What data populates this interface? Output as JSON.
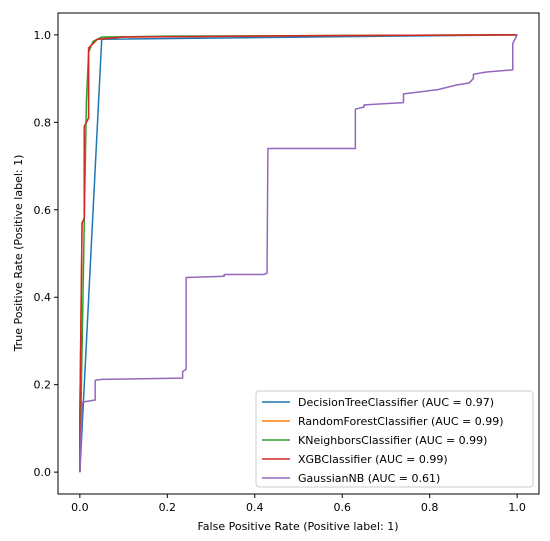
{
  "chart_data": {
    "type": "line",
    "title": "",
    "xlabel": "False Positive Rate (Positive label: 1)",
    "ylabel": "True Positive Rate (Positive label: 1)",
    "xlim": [
      -0.05,
      1.05
    ],
    "ylim": [
      -0.05,
      1.05
    ],
    "x_ticks": [
      "0.0",
      "0.2",
      "0.4",
      "0.6",
      "0.8",
      "1.0"
    ],
    "y_ticks": [
      "0.0",
      "0.2",
      "0.4",
      "0.6",
      "0.8",
      "1.0"
    ],
    "grid": false,
    "legend_position": "lower-right",
    "series": [
      {
        "name": "DecisionTreeClassifier (AUC = 0.97)",
        "color": "#1f77b4",
        "points": [
          [
            0.0,
            0.0
          ],
          [
            0.05,
            0.99
          ],
          [
            1.0,
            1.0
          ]
        ]
      },
      {
        "name": "RandomForestClassifier (AUC = 0.99)",
        "color": "#ff7f0e",
        "points": [
          [
            0.0,
            0.0
          ],
          [
            0.0,
            0.13
          ],
          [
            0.005,
            0.57
          ],
          [
            0.01,
            0.58
          ],
          [
            0.01,
            0.79
          ],
          [
            0.02,
            0.81
          ],
          [
            0.02,
            0.97
          ],
          [
            0.03,
            0.98
          ],
          [
            0.04,
            0.99
          ],
          [
            0.1,
            0.995
          ],
          [
            0.5,
            0.998
          ],
          [
            1.0,
            1.0
          ]
        ]
      },
      {
        "name": "KNeighborsClassifier (AUC = 0.99)",
        "color": "#2ca02c",
        "points": [
          [
            0.0,
            0.0
          ],
          [
            0.015,
            0.85
          ],
          [
            0.02,
            0.96
          ],
          [
            0.03,
            0.985
          ],
          [
            0.05,
            0.995
          ],
          [
            0.2,
            0.997
          ],
          [
            1.0,
            1.0
          ]
        ]
      },
      {
        "name": "XGBClassifier (AUC = 0.99)",
        "color": "#d62728",
        "points": [
          [
            0.0,
            0.0
          ],
          [
            0.0,
            0.13
          ],
          [
            0.005,
            0.57
          ],
          [
            0.01,
            0.58
          ],
          [
            0.01,
            0.79
          ],
          [
            0.02,
            0.81
          ],
          [
            0.02,
            0.97
          ],
          [
            0.03,
            0.98
          ],
          [
            0.04,
            0.99
          ],
          [
            0.1,
            0.995
          ],
          [
            0.5,
            0.998
          ],
          [
            1.0,
            1.0
          ]
        ]
      },
      {
        "name": "GaussianNB (AUC = 0.61)",
        "color": "#9467bd",
        "points": [
          [
            0.0,
            0.0
          ],
          [
            0.005,
            0.16
          ],
          [
            0.035,
            0.165
          ],
          [
            0.035,
            0.21
          ],
          [
            0.05,
            0.212
          ],
          [
            0.235,
            0.215
          ],
          [
            0.235,
            0.23
          ],
          [
            0.243,
            0.235
          ],
          [
            0.243,
            0.445
          ],
          [
            0.33,
            0.448
          ],
          [
            0.33,
            0.452
          ],
          [
            0.42,
            0.452
          ],
          [
            0.428,
            0.455
          ],
          [
            0.43,
            0.74
          ],
          [
            0.63,
            0.74
          ],
          [
            0.63,
            0.83
          ],
          [
            0.65,
            0.835
          ],
          [
            0.65,
            0.84
          ],
          [
            0.74,
            0.845
          ],
          [
            0.74,
            0.865
          ],
          [
            0.78,
            0.87
          ],
          [
            0.82,
            0.875
          ],
          [
            0.86,
            0.885
          ],
          [
            0.89,
            0.89
          ],
          [
            0.9,
            0.9
          ],
          [
            0.9,
            0.91
          ],
          [
            0.93,
            0.915
          ],
          [
            0.99,
            0.92
          ],
          [
            0.99,
            0.98
          ],
          [
            1.0,
            1.0
          ]
        ]
      }
    ]
  }
}
